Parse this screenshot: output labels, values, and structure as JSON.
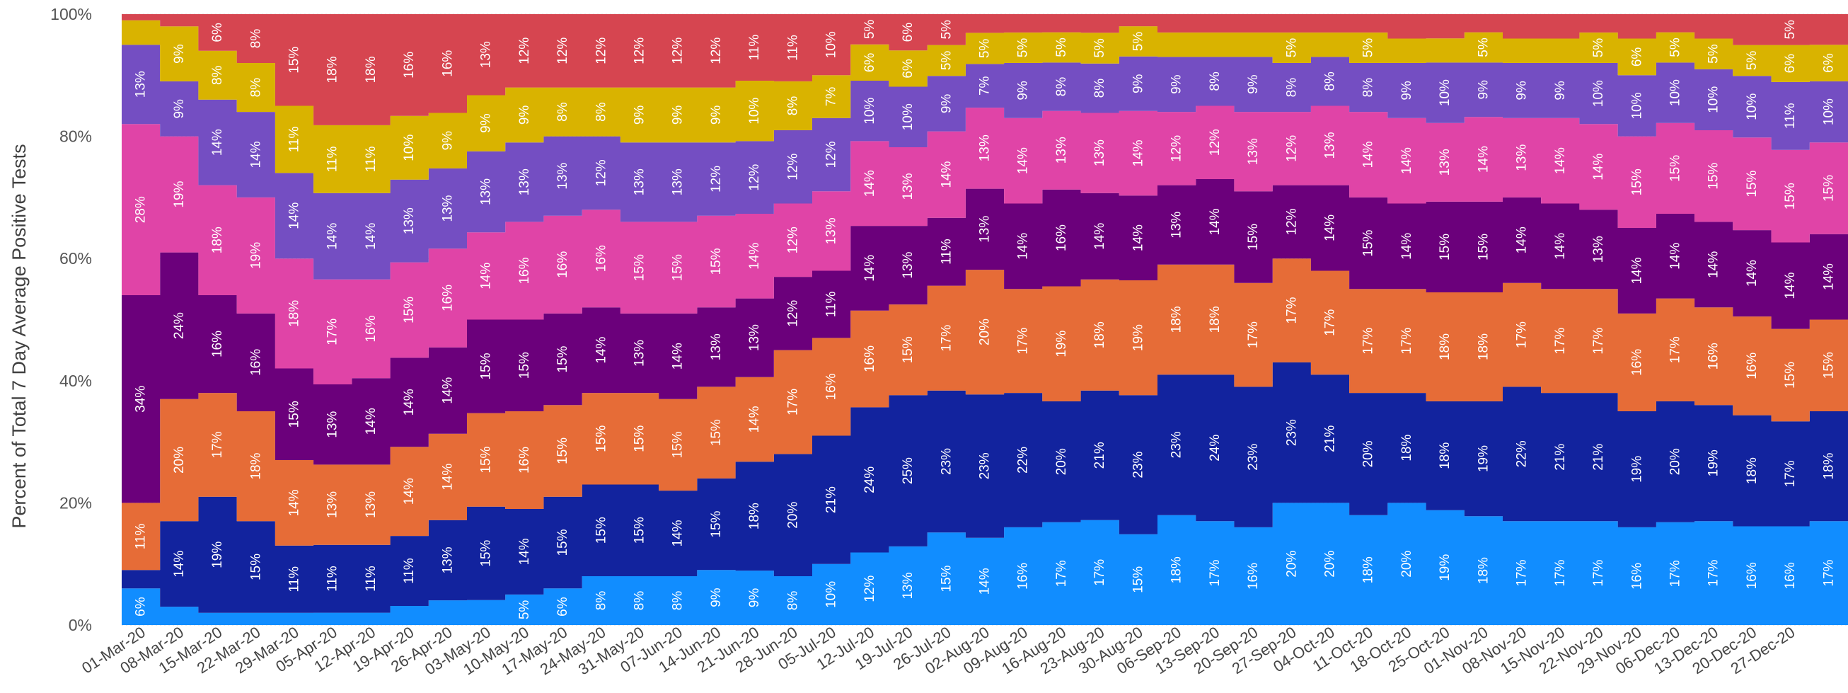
{
  "chart_data": {
    "type": "area",
    "title": "",
    "ylabel": "Percent of Total 7 Day Average Positive Tests",
    "xlabel": "",
    "ylim": [
      0,
      100
    ],
    "y_ticks": [
      "0%",
      "20%",
      "40%",
      "60%",
      "80%",
      "100%"
    ],
    "grid": false,
    "legend": "none",
    "x_tick_labels": [
      "01-Mar-20",
      "08-Mar-20",
      "15-Mar-20",
      "22-Mar-20",
      "29-Mar-20",
      "05-Apr-20",
      "12-Apr-20",
      "19-Apr-20",
      "26-Apr-20",
      "03-May-20",
      "10-May-20",
      "17-May-20",
      "24-May-20",
      "31-May-20",
      "07-Jun-20",
      "14-Jun-20",
      "21-Jun-20",
      "28-Jun-20",
      "05-Jul-20",
      "12-Jul-20",
      "19-Jul-20",
      "26-Jul-20",
      "02-Aug-20",
      "09-Aug-20",
      "16-Aug-20",
      "23-Aug-20",
      "30-Aug-20",
      "06-Sep-20",
      "13-Sep-20",
      "20-Sep-20",
      "27-Sep-20",
      "04-Oct-20",
      "11-Oct-20",
      "18-Oct-20",
      "25-Oct-20",
      "01-Nov-20",
      "08-Nov-20",
      "15-Nov-20",
      "22-Nov-20",
      "29-Nov-20",
      "06-Dec-20",
      "13-Dec-20",
      "20-Dec-20",
      "27-Dec-20"
    ],
    "series_colors": [
      "#118DFF",
      "#12239E",
      "#E66C37",
      "#6B007B",
      "#E044A7",
      "#744EC2",
      "#D9B300",
      "#D64550"
    ],
    "series": [
      {
        "name": "",
        "values": [
          6,
          3,
          2,
          2,
          2,
          2,
          2,
          3,
          4,
          4,
          5,
          6,
          8,
          8,
          8,
          9,
          9,
          8,
          10,
          12,
          13,
          15,
          14,
          16,
          17,
          17,
          15,
          18,
          17,
          16,
          20,
          20,
          18,
          20,
          19,
          18,
          17,
          17,
          17,
          16,
          17,
          17,
          16,
          16,
          17
        ]
      },
      {
        "name": "",
        "values": [
          3,
          14,
          19,
          15,
          11,
          11,
          11,
          11,
          13,
          15,
          14,
          15,
          15,
          15,
          14,
          15,
          18,
          20,
          21,
          24,
          25,
          23,
          23,
          22,
          20,
          21,
          23,
          23,
          24,
          23,
          23,
          21,
          20,
          18,
          18,
          19,
          22,
          21,
          21,
          19,
          20,
          19,
          18,
          17,
          18
        ]
      },
      {
        "name": "",
        "values": [
          11,
          20,
          17,
          18,
          14,
          13,
          13,
          14,
          14,
          15,
          16,
          15,
          15,
          15,
          15,
          15,
          14,
          17,
          16,
          16,
          15,
          17,
          20,
          17,
          19,
          18,
          19,
          18,
          18,
          17,
          17,
          17,
          17,
          17,
          18,
          18,
          17,
          17,
          17,
          16,
          17,
          16,
          16,
          15,
          15
        ]
      },
      {
        "name": "",
        "values": [
          34,
          24,
          16,
          16,
          15,
          13,
          14,
          14,
          14,
          15,
          15,
          15,
          14,
          13,
          14,
          13,
          13,
          12,
          11,
          14,
          13,
          11,
          13,
          14,
          16,
          14,
          14,
          13,
          14,
          15,
          12,
          14,
          15,
          14,
          15,
          15,
          14,
          14,
          13,
          14,
          14,
          14,
          14,
          14,
          14
        ]
      },
      {
        "name": "",
        "values": [
          28,
          19,
          18,
          19,
          18,
          17,
          16,
          15,
          16,
          14,
          16,
          16,
          16,
          15,
          15,
          15,
          14,
          12,
          13,
          14,
          13,
          14,
          13,
          14,
          13,
          13,
          14,
          12,
          12,
          13,
          12,
          13,
          14,
          14,
          13,
          14,
          13,
          14,
          14,
          15,
          15,
          15,
          15,
          15,
          15
        ]
      },
      {
        "name": "",
        "values": [
          13,
          9,
          14,
          14,
          14,
          14,
          14,
          13,
          13,
          13,
          13,
          13,
          12,
          13,
          13,
          12,
          12,
          12,
          12,
          10,
          10,
          9,
          7,
          9,
          8,
          8,
          9,
          9,
          8,
          9,
          8,
          8,
          8,
          9,
          10,
          9,
          9,
          9,
          10,
          10,
          10,
          10,
          10,
          11,
          10
        ]
      },
      {
        "name": "",
        "values": [
          4,
          9,
          8,
          8,
          11,
          11,
          11,
          10,
          9,
          9,
          9,
          8,
          8,
          9,
          9,
          9,
          10,
          8,
          7,
          6,
          6,
          5,
          5,
          5,
          5,
          5,
          5,
          4,
          4,
          4,
          5,
          4,
          5,
          4,
          4,
          5,
          4,
          4,
          5,
          6,
          5,
          5,
          5,
          6,
          6
        ]
      },
      {
        "name": "",
        "values": [
          1,
          2,
          6,
          8,
          15,
          18,
          18,
          16,
          16,
          13,
          12,
          12,
          12,
          12,
          12,
          12,
          11,
          11,
          10,
          5,
          6,
          5,
          3,
          3,
          3,
          3,
          2,
          3,
          3,
          3,
          3,
          3,
          3,
          4,
          4,
          3,
          4,
          4,
          3,
          4,
          3,
          4,
          5,
          5,
          5
        ]
      }
    ],
    "data_labels": [
      [
        "6%",
        "",
        "",
        "",
        "",
        "",
        "",
        "",
        "",
        "",
        "5%",
        "6%",
        "8%",
        "8%",
        "8%",
        "9%",
        "9%",
        "8%",
        "10%",
        "12%",
        "13%",
        "15%",
        "14%",
        "16%",
        "17%",
        "17%",
        "15%",
        "18%",
        "17%",
        "16%",
        "20%",
        "20%",
        "18%",
        "20%",
        "19%",
        "18%",
        "17%",
        "17%",
        "17%",
        "16%",
        "17%",
        "17%",
        "16%",
        "16%",
        "17%"
      ],
      [
        "",
        "14%",
        "19%",
        "15%",
        "11%",
        "11%",
        "11%",
        "11%",
        "13%",
        "15%",
        "14%",
        "15%",
        "15%",
        "15%",
        "14%",
        "15%",
        "18%",
        "20%",
        "21%",
        "24%",
        "25%",
        "23%",
        "23%",
        "22%",
        "20%",
        "21%",
        "23%",
        "23%",
        "24%",
        "23%",
        "23%",
        "21%",
        "20%",
        "18%",
        "18%",
        "19%",
        "22%",
        "21%",
        "21%",
        "19%",
        "20%",
        "19%",
        "18%",
        "17%",
        "18%"
      ],
      [
        "11%",
        "20%",
        "17%",
        "18%",
        "14%",
        "13%",
        "13%",
        "14%",
        "14%",
        "15%",
        "16%",
        "15%",
        "15%",
        "15%",
        "15%",
        "15%",
        "14%",
        "17%",
        "16%",
        "16%",
        "15%",
        "17%",
        "20%",
        "17%",
        "19%",
        "18%",
        "19%",
        "18%",
        "18%",
        "17%",
        "17%",
        "17%",
        "17%",
        "17%",
        "18%",
        "18%",
        "17%",
        "17%",
        "17%",
        "16%",
        "17%",
        "16%",
        "16%",
        "15%",
        "15%"
      ],
      [
        "34%",
        "24%",
        "16%",
        "16%",
        "15%",
        "13%",
        "14%",
        "14%",
        "14%",
        "15%",
        "15%",
        "15%",
        "14%",
        "13%",
        "14%",
        "13%",
        "13%",
        "12%",
        "11%",
        "14%",
        "13%",
        "11%",
        "13%",
        "14%",
        "16%",
        "14%",
        "14%",
        "13%",
        "14%",
        "15%",
        "12%",
        "14%",
        "15%",
        "14%",
        "15%",
        "15%",
        "14%",
        "14%",
        "13%",
        "14%",
        "14%",
        "14%",
        "14%",
        "14%",
        "14%"
      ],
      [
        "28%",
        "19%",
        "18%",
        "19%",
        "18%",
        "17%",
        "16%",
        "15%",
        "16%",
        "14%",
        "16%",
        "16%",
        "16%",
        "15%",
        "15%",
        "15%",
        "14%",
        "12%",
        "13%",
        "14%",
        "13%",
        "14%",
        "13%",
        "14%",
        "13%",
        "13%",
        "14%",
        "12%",
        "12%",
        "13%",
        "12%",
        "13%",
        "14%",
        "14%",
        "13%",
        "14%",
        "13%",
        "14%",
        "14%",
        "15%",
        "15%",
        "15%",
        "15%",
        "15%",
        "15%"
      ],
      [
        "13%",
        "9%",
        "14%",
        "14%",
        "14%",
        "14%",
        "14%",
        "13%",
        "13%",
        "13%",
        "13%",
        "13%",
        "12%",
        "13%",
        "13%",
        "12%",
        "12%",
        "12%",
        "12%",
        "10%",
        "10%",
        "9%",
        "7%",
        "9%",
        "8%",
        "8%",
        "9%",
        "9%",
        "8%",
        "9%",
        "8%",
        "8%",
        "8%",
        "9%",
        "10%",
        "9%",
        "9%",
        "9%",
        "10%",
        "10%",
        "10%",
        "10%",
        "10%",
        "11%",
        "10%"
      ],
      [
        "",
        "9%",
        "8%",
        "8%",
        "11%",
        "11%",
        "11%",
        "10%",
        "9%",
        "9%",
        "9%",
        "8%",
        "8%",
        "9%",
        "9%",
        "9%",
        "10%",
        "8%",
        "7%",
        "6%",
        "6%",
        "5%",
        "5%",
        "5%",
        "5%",
        "5%",
        "5%",
        "",
        "",
        "",
        "5%",
        "",
        "5%",
        "",
        "",
        "5%",
        "",
        "",
        "5%",
        "6%",
        "5%",
        "5%",
        "5%",
        "6%",
        "6%"
      ],
      [
        "",
        "",
        "6%",
        "8%",
        "15%",
        "18%",
        "18%",
        "16%",
        "16%",
        "13%",
        "12%",
        "12%",
        "12%",
        "12%",
        "12%",
        "12%",
        "11%",
        "11%",
        "10%",
        "5%",
        "6%",
        "5%",
        "",
        "",
        "",
        "",
        "",
        "",
        "",
        "",
        "",
        "",
        "",
        "",
        "",
        "",
        "",
        "",
        "",
        "",
        "",
        "",
        "",
        "5%",
        ""
      ]
    ]
  }
}
